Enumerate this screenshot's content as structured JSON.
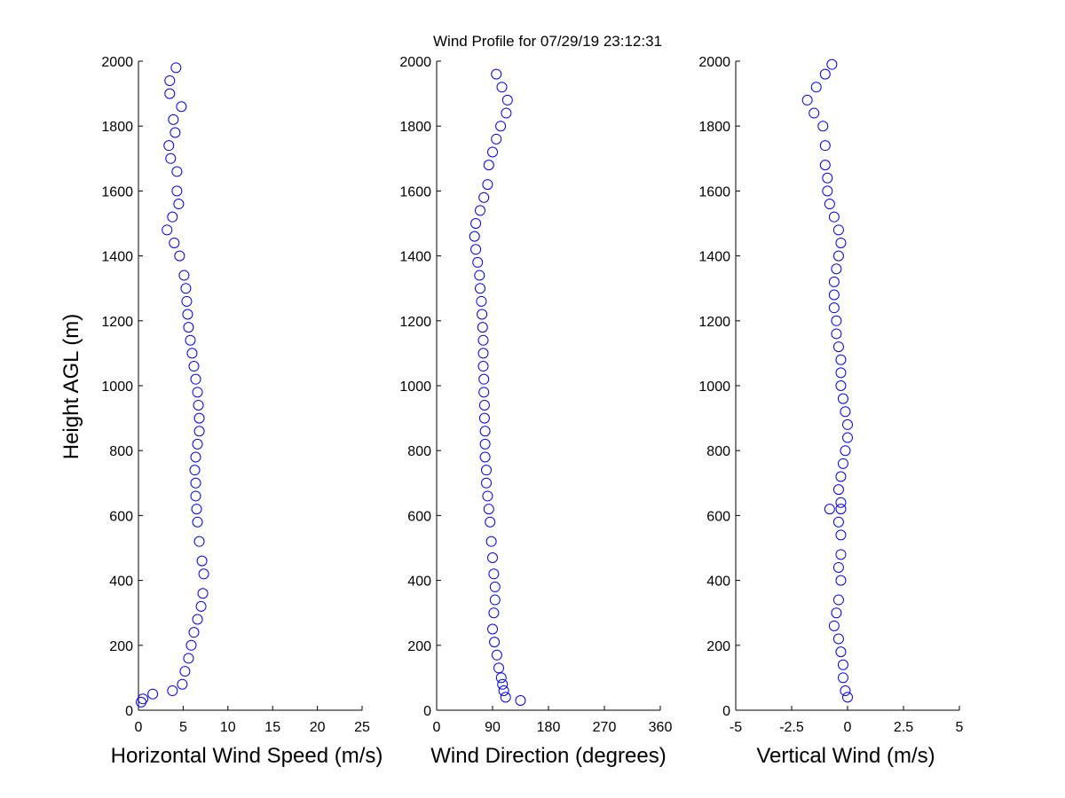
{
  "figure": {
    "title": "Wind Profile for  07/29/19 23:12:31"
  },
  "colors": {
    "marker": "#0000ff",
    "axis": "#000000",
    "background": "#ffffff"
  },
  "chart_data": [
    {
      "type": "scatter",
      "id": "speed",
      "title": "",
      "xlabel": "Horizontal Wind Speed (m/s)",
      "ylabel": "Height AGL (m)",
      "xlim": [
        0,
        25
      ],
      "ylim": [
        0,
        2000
      ],
      "xticks": [
        0,
        5,
        10,
        15,
        20,
        25
      ],
      "xtick_labels": [
        "0",
        "5",
        "10",
        "15",
        "20",
        "25"
      ],
      "yticks": [
        0,
        200,
        400,
        600,
        800,
        1000,
        1200,
        1400,
        1600,
        1800,
        2000
      ],
      "ytick_labels": [
        "0",
        "200",
        "400",
        "600",
        "800",
        "1000",
        "1200",
        "1400",
        "1600",
        "1800",
        "2000"
      ],
      "marker": "open-circle",
      "x": [
        3.8,
        1.6,
        0.5,
        0.3,
        4.9,
        5.2,
        5.6,
        5.9,
        6.2,
        6.6,
        7.0,
        7.2,
        7.3,
        7.1,
        6.8,
        6.6,
        6.5,
        6.4,
        6.4,
        6.3,
        6.4,
        6.6,
        6.8,
        6.8,
        6.7,
        6.6,
        6.4,
        6.2,
        6.0,
        5.8,
        5.6,
        5.5,
        5.4,
        5.3,
        5.1,
        4.6,
        4.0,
        3.2,
        3.8,
        4.5,
        4.3,
        4.3,
        3.6,
        3.4,
        4.1,
        3.9,
        4.8,
        3.5,
        3.5,
        4.2
      ],
      "y": [
        60,
        50,
        35,
        25,
        80,
        120,
        160,
        200,
        240,
        280,
        320,
        360,
        420,
        460,
        520,
        580,
        620,
        660,
        700,
        740,
        780,
        820,
        860,
        900,
        940,
        980,
        1020,
        1060,
        1100,
        1140,
        1180,
        1220,
        1260,
        1300,
        1340,
        1400,
        1440,
        1480,
        1520,
        1560,
        1600,
        1660,
        1700,
        1740,
        1780,
        1820,
        1860,
        1900,
        1940,
        1980
      ]
    },
    {
      "type": "scatter",
      "id": "direction",
      "title": "",
      "xlabel": "Wind Direction (degrees)",
      "ylabel": "",
      "xlim": [
        0,
        360
      ],
      "ylim": [
        0,
        2000
      ],
      "xticks": [
        0,
        90,
        180,
        270,
        360
      ],
      "xtick_labels": [
        "0",
        "90",
        "180",
        "270",
        "360"
      ],
      "yticks": [
        0,
        200,
        400,
        600,
        800,
        1000,
        1200,
        1400,
        1600,
        1800,
        2000
      ],
      "ytick_labels": [
        "0",
        "200",
        "400",
        "600",
        "800",
        "1000",
        "1200",
        "1400",
        "1600",
        "1800",
        "2000"
      ],
      "marker": "open-circle",
      "x": [
        135,
        111,
        108,
        106,
        104,
        100,
        97,
        93,
        90,
        92,
        94,
        94,
        92,
        90,
        88,
        86,
        84,
        82,
        80,
        80,
        78,
        78,
        78,
        77,
        77,
        76,
        76,
        75,
        75,
        75,
        74,
        73,
        72,
        70,
        69,
        66,
        63,
        61,
        63,
        70,
        76,
        82,
        84,
        90,
        96,
        103,
        112,
        114,
        105,
        96
      ],
      "y": [
        30,
        40,
        60,
        80,
        100,
        130,
        170,
        210,
        250,
        300,
        340,
        380,
        420,
        470,
        520,
        580,
        620,
        660,
        700,
        740,
        780,
        820,
        860,
        900,
        940,
        980,
        1020,
        1060,
        1100,
        1140,
        1180,
        1220,
        1260,
        1300,
        1340,
        1380,
        1420,
        1460,
        1500,
        1540,
        1580,
        1620,
        1680,
        1720,
        1760,
        1800,
        1840,
        1880,
        1920,
        1960
      ]
    },
    {
      "type": "scatter",
      "id": "vertical",
      "title": "",
      "xlabel": "Vertical Wind (m/s)",
      "ylabel": "",
      "xlim": [
        -5,
        5
      ],
      "ylim": [
        0,
        2000
      ],
      "xticks": [
        -5,
        -2.5,
        0,
        2.5,
        5
      ],
      "xtick_labels": [
        "-5",
        "-2.5",
        "0",
        "2.5",
        "5"
      ],
      "yticks": [
        0,
        200,
        400,
        600,
        800,
        1000,
        1200,
        1400,
        1600,
        1800,
        2000
      ],
      "ytick_labels": [
        "0",
        "200",
        "400",
        "600",
        "800",
        "1000",
        "1200",
        "1400",
        "1600",
        "1800",
        "2000"
      ],
      "marker": "open-circle",
      "x": [
        0.0,
        -0.1,
        -0.2,
        -0.2,
        -0.3,
        -0.4,
        -0.6,
        -0.5,
        -0.4,
        -0.3,
        -0.4,
        -0.3,
        -0.3,
        -0.4,
        -0.3,
        -0.3,
        -0.8,
        -0.4,
        -0.3,
        -0.2,
        -0.1,
        0.0,
        0.0,
        -0.1,
        -0.2,
        -0.3,
        -0.3,
        -0.3,
        -0.4,
        -0.5,
        -0.5,
        -0.6,
        -0.6,
        -0.6,
        -0.5,
        -0.4,
        -0.3,
        -0.4,
        -0.6,
        -0.8,
        -0.9,
        -0.9,
        -1.0,
        -1.0,
        -1.1,
        -1.5,
        -1.8,
        -1.4,
        -1.0,
        -0.7
      ],
      "y": [
        40,
        60,
        100,
        140,
        180,
        220,
        260,
        300,
        340,
        400,
        440,
        480,
        540,
        580,
        620,
        640,
        620,
        680,
        720,
        760,
        800,
        840,
        880,
        920,
        960,
        1000,
        1040,
        1080,
        1120,
        1160,
        1200,
        1240,
        1280,
        1320,
        1360,
        1400,
        1440,
        1480,
        1520,
        1560,
        1600,
        1640,
        1680,
        1740,
        1800,
        1840,
        1880,
        1920,
        1960,
        1990
      ]
    }
  ]
}
